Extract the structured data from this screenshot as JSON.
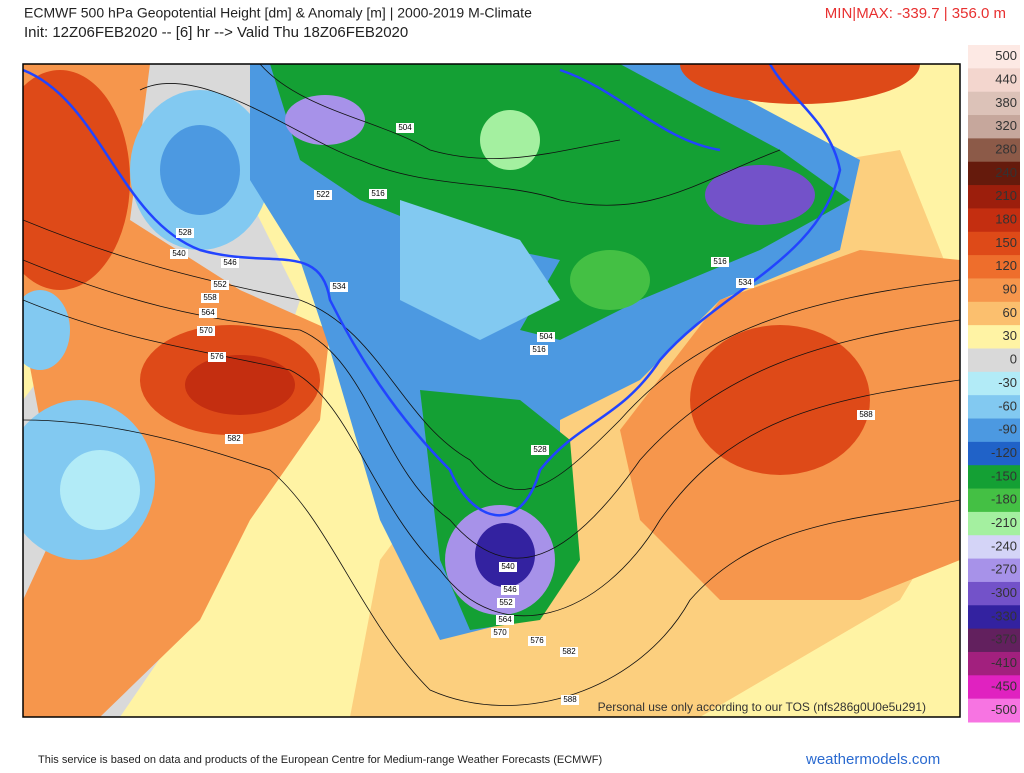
{
  "header": {
    "title": "ECMWF 500 hPa Geopotential Height [dm] & Anomaly [m] | 2000-2019 M-Climate",
    "subtitle": "Init: 12Z06FEB2020 -- [6] hr --> Valid Thu 18Z06FEB2020",
    "minmax": "MIN|MAX: -339.7 | 356.0 m"
  },
  "colorbar": {
    "labels": [
      "500",
      "440",
      "380",
      "320",
      "280",
      "240",
      "210",
      "180",
      "150",
      "120",
      "90",
      "60",
      "30",
      "0",
      "-30",
      "-60",
      "-90",
      "-120",
      "-150",
      "-180",
      "-210",
      "-240",
      "-270",
      "-300",
      "-330",
      "-370",
      "-410",
      "-450",
      "-500"
    ],
    "colors": [
      "#fde9e4",
      "#f3d6ce",
      "#dcc2b8",
      "#c6a79c",
      "#8c5a48",
      "#651a0c",
      "#9c1e0c",
      "#c42e10",
      "#de4a18",
      "#ee6e2c",
      "#f6964c",
      "#fbbf6e",
      "#fff3a4",
      "#d9d9d9",
      "#b2ebf7",
      "#82c9f1",
      "#4c99e1",
      "#2062c8",
      "#14a034",
      "#44c044",
      "#a4f0a0",
      "#d4d4f7",
      "#a792e9",
      "#7352c9",
      "#3322a0",
      "#62205e",
      "#a2207e",
      "#e022c0",
      "#f774e2"
    ]
  },
  "map": {
    "contour_labels": [
      "504",
      "522",
      "516",
      "528",
      "540",
      "546",
      "552",
      "558",
      "564",
      "570",
      "576",
      "582",
      "534",
      "504",
      "516",
      "516",
      "534",
      "528",
      "588",
      "540",
      "546",
      "552",
      "564",
      "570",
      "576",
      "582",
      "588"
    ],
    "watermark": "Personal use only according to our TOS (nfs286g0U0e5u291)"
  },
  "footer": {
    "credit": "This service is based on data and products of the European Centre for Medium-range Weather Forecasts (ECMWF)",
    "site": "weathermodels.com"
  }
}
